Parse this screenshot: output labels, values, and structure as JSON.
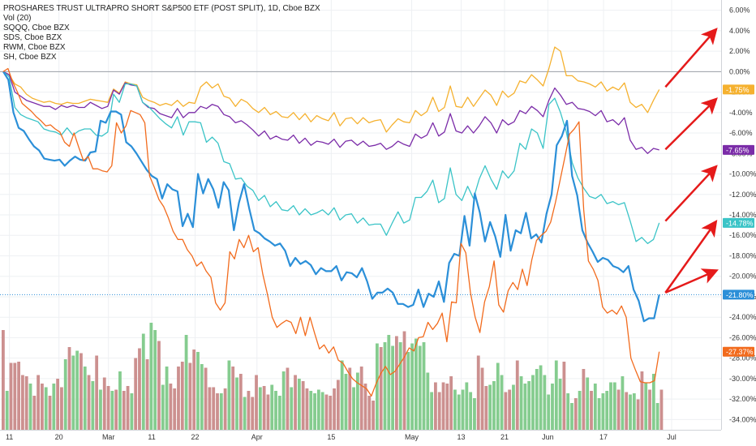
{
  "chart_data": {
    "type": "line",
    "title": "PROSHARES TRUST ULTRAPRO SHORT S&P500 ETF (POST SPLIT), 1D, Cboe BZX",
    "legend_lines": [
      "Vol (20)",
      "SQQQ, Cboe BZX",
      "SDS, Cboe BZX",
      "RWM, Cboe BZX",
      "SH, Cboe BZX"
    ],
    "y_axis": {
      "range": [
        -35,
        7
      ],
      "unit": "%",
      "ticks": [
        "6.00%",
        "4.00%",
        "2.00%",
        "0.00%",
        "-2.00%",
        "-4.00%",
        "-6.00%",
        "-8.00%",
        "-10.00%",
        "-12.00%",
        "-14.00%",
        "-16.00%",
        "-18.00%",
        "-20.00%",
        "-22.00%",
        "-24.00%",
        "-26.00%",
        "-28.00%",
        "-30.00%",
        "-32.00%",
        "-34.00%"
      ],
      "tick_values": [
        6,
        4,
        2,
        0,
        -2,
        -4,
        -6,
        -8,
        -10,
        -12,
        -14,
        -16,
        -18,
        -20,
        -22,
        -24,
        -26,
        -28,
        -30,
        -32,
        -34
      ]
    },
    "x_axis": {
      "ticks": [
        "11",
        "20",
        "Mar",
        "11",
        "22",
        "Apr",
        "15",
        "May",
        "13",
        "21",
        "Jun",
        "17",
        "Jul"
      ],
      "tick_index": [
        1,
        9,
        17,
        24,
        31,
        41,
        53,
        66,
        74,
        81,
        88,
        97,
        108
      ]
    },
    "series": [
      {
        "color": "#f5b12f",
        "last_label": "-1.75%",
        "x_end": 106,
        "y_end": -1.75,
        "values": [
          0,
          -0.3,
          -1.2,
          -1.5,
          -2.2,
          -2.6,
          -2.8,
          -3.0,
          -2.9,
          -3.1,
          -3.2,
          -3.0,
          -3.1,
          -3.1,
          -2.9,
          -2.7,
          -2.8,
          -2.9,
          -3.0,
          -1.7,
          -2.1,
          -1.0,
          -1.2,
          -1.3,
          -2.5,
          -2.8,
          -3.0,
          -3.3,
          -3.1,
          -3.3,
          -2.8,
          -3.4,
          -3.0,
          -3.1,
          -1.5,
          -1.0,
          -1.6,
          -1.2,
          -2.4,
          -2.6,
          -3.4,
          -2.7,
          -3.0,
          -3.6,
          -4.0,
          -3.5,
          -4.2,
          -3.9,
          -4.4,
          -4.5,
          -4.0,
          -4.7,
          -4.1,
          -4.9,
          -4.3,
          -4.6,
          -4.8,
          -4.0,
          -5.3,
          -4.6,
          -4.5,
          -5.1,
          -4.5,
          -5.0,
          -4.8,
          -4.7,
          -5.9,
          -5.2,
          -4.6,
          -4.9,
          -5.0,
          -3.8,
          -4.3,
          -3.9,
          -2.5,
          -3.9,
          -3.5,
          -1.4,
          -3.4,
          -3.5,
          -2.5,
          -3.4,
          -2.6,
          -1.8,
          -2.3,
          -3.3,
          -1.9,
          -2.5,
          -2.1,
          -0.9,
          -1.1,
          -0.3,
          -0.8,
          -1.4,
          0.3,
          2.4,
          2.0,
          -0.4,
          -0.4,
          -0.9,
          -1.0,
          -1.2,
          -1.5,
          -1.0,
          -1.9,
          -1.5,
          -1.8,
          -1.1,
          -3.0,
          -3.5,
          -3.2,
          -4.0,
          -2.8,
          -1.75
        ]
      },
      {
        "color": "#7b2ca8",
        "last_label": "-7.65%",
        "x_end": 106,
        "y_end": -7.65,
        "values": [
          0,
          -0.3,
          -2.0,
          -2.4,
          -2.8,
          -3.0,
          -3.2,
          -3.4,
          -3.4,
          -3.7,
          -3.3,
          -3.5,
          -3.3,
          -3.5,
          -3.5,
          -3.0,
          -3.3,
          -3.6,
          -3.4,
          -1.8,
          -2.2,
          -1.1,
          -1.3,
          -1.4,
          -3.0,
          -3.5,
          -3.6,
          -4.1,
          -4.3,
          -4.5,
          -3.6,
          -4.5,
          -4.0,
          -4.0,
          -3.4,
          -3.6,
          -3.2,
          -3.4,
          -4.2,
          -4.4,
          -5.0,
          -4.8,
          -5.2,
          -5.7,
          -6.3,
          -5.8,
          -6.6,
          -6.3,
          -6.6,
          -6.7,
          -6.2,
          -7.0,
          -6.5,
          -7.2,
          -6.8,
          -6.9,
          -7.1,
          -6.6,
          -7.4,
          -6.8,
          -6.7,
          -7.2,
          -6.8,
          -7.3,
          -7.2,
          -7.0,
          -7.6,
          -7.3,
          -6.8,
          -7.1,
          -7.3,
          -6.1,
          -6.5,
          -6.2,
          -5.0,
          -6.3,
          -5.9,
          -4.1,
          -5.8,
          -6.0,
          -5.3,
          -6.0,
          -5.3,
          -4.4,
          -5.0,
          -6.0,
          -4.7,
          -5.2,
          -4.9,
          -3.8,
          -4.1,
          -3.4,
          -3.8,
          -4.4,
          -2.8,
          -1.6,
          -2.3,
          -3.2,
          -3.0,
          -3.6,
          -3.7,
          -3.9,
          -4.3,
          -3.8,
          -4.9,
          -4.7,
          -5.2,
          -4.5,
          -6.7,
          -7.6,
          -7.4,
          -8.0,
          -7.5,
          -7.65
        ]
      },
      {
        "color": "#3bc4c7",
        "last_label": "-14.78%",
        "x_end": 106,
        "y_end": -14.78,
        "values": [
          0,
          -0.5,
          -3.5,
          -4.2,
          -4.5,
          -4.7,
          -4.9,
          -5.6,
          -5.8,
          -5.9,
          -6.2,
          -5.5,
          -6.2,
          -5.8,
          -5.6,
          -5.6,
          -6.2,
          -6.3,
          -5.9,
          -2.2,
          -3.0,
          -1.2,
          -1.2,
          -1.4,
          -3.0,
          -3.4,
          -4.0,
          -4.6,
          -5.1,
          -5.5,
          -4.4,
          -6.2,
          -4.9,
          -4.9,
          -5.0,
          -6.9,
          -6.4,
          -7.0,
          -8.8,
          -9.0,
          -10.5,
          -10.4,
          -11.2,
          -11.6,
          -12.6,
          -12.1,
          -13.2,
          -12.7,
          -13.5,
          -13.6,
          -13.1,
          -14.0,
          -13.4,
          -14.0,
          -13.8,
          -13.5,
          -14.0,
          -13.3,
          -14.5,
          -14.0,
          -13.9,
          -14.8,
          -14.3,
          -15.0,
          -14.9,
          -14.9,
          -16.0,
          -14.8,
          -13.7,
          -14.8,
          -14.5,
          -12.3,
          -12.3,
          -11.7,
          -10.6,
          -12.8,
          -12.4,
          -9.4,
          -12.0,
          -12.6,
          -11.2,
          -12.4,
          -10.5,
          -9.2,
          -10.5,
          -11.5,
          -9.7,
          -10.4,
          -9.7,
          -7.0,
          -7.6,
          -5.6,
          -6.0,
          -7.5,
          -3.2,
          -2.6,
          -4.0,
          -5.9,
          -8.9,
          -10.4,
          -11.4,
          -12.2,
          -12.4,
          -12.0,
          -12.9,
          -12.7,
          -13.0,
          -12.8,
          -14.6,
          -16.6,
          -16.2,
          -16.8,
          -16.4,
          -14.78
        ]
      },
      {
        "color": "#2b8fd8",
        "last_label": "-21.80%",
        "x_end": 106,
        "y_end": -21.8,
        "values": [
          0,
          -0.8,
          -4.0,
          -5.5,
          -5.8,
          -6.6,
          -7.3,
          -7.7,
          -8.5,
          -8.6,
          -8.7,
          -8.6,
          -9.2,
          -8.7,
          -8.3,
          -8.6,
          -8.7,
          -7.9,
          -7.8,
          -4.8,
          -5.0,
          -3.9,
          -3.9,
          -4.2,
          -6.9,
          -7.3,
          -8.0,
          -8.8,
          -9.6,
          -10.2,
          -10.5,
          -12.4,
          -11.0,
          -11.5,
          -11.7,
          -15.1,
          -13.9,
          -15.2,
          -10.0,
          -11.9,
          -10.5,
          -11.5,
          -13.3,
          -10.8,
          -11.6,
          -15.5,
          -12.8,
          -11.0,
          -13.4,
          -15.5,
          -15.8,
          -16.3,
          -16.6,
          -17.0,
          -16.8,
          -17.5,
          -19.0,
          -18.2,
          -18.8,
          -18.5,
          -18.9,
          -19.8,
          -19.2,
          -19.5,
          -19.5,
          -19.0,
          -20.4,
          -19.6,
          -19.7,
          -20.1,
          -19.2,
          -20.5,
          -22.2,
          -21.6,
          -21.6,
          -21.2,
          -21.6,
          -22.7,
          -22.7,
          -23.0,
          -22.8,
          -21.3,
          -23.0,
          -21.7,
          -22.0,
          -20.5,
          -22.5,
          -18.7,
          -17.8,
          -18.0,
          -14.1,
          -17.0,
          -11.9,
          -13.8,
          -16.6,
          -14.7,
          -16.1,
          -18.1,
          -14.0,
          -17.5,
          -15.5,
          -15.8,
          -13.8,
          -16.3,
          -15.9,
          -16.7,
          -13.9,
          -12.0,
          -7.2,
          -6.3,
          -4.8,
          -10.2,
          -12.1,
          -15.5,
          -16.7,
          -17.6,
          -18.6,
          -18.2,
          -18.4,
          -19.0,
          -19.2,
          -19.6,
          -19.0,
          -21.3,
          -22.4,
          -24.4,
          -24.1,
          -24.1,
          -21.8
        ]
      },
      {
        "color": "#f26b1d",
        "last_label": "-27.37%",
        "x_end": 106,
        "y_end": -27.37,
        "values": [
          0,
          0.3,
          -1.0,
          -2.0,
          -3.1,
          -3.5,
          -3.9,
          -4.4,
          -4.8,
          -5.3,
          -5.2,
          -5.6,
          -5.9,
          -6.9,
          -7.3,
          -6.0,
          -7.4,
          -8.7,
          -8.3,
          -9.5,
          -9.5,
          -9.7,
          -9.8,
          -9.2,
          -5.0,
          -6.0,
          -5.3,
          -3.8,
          -4.0,
          -4.2,
          -5.0,
          -10.2,
          -11.3,
          -12.5,
          -13.2,
          -14.3,
          -15.6,
          -16.4,
          -16.4,
          -17.4,
          -18.0,
          -19.0,
          -18.6,
          -19.5,
          -20.1,
          -22.6,
          -23.3,
          -22.6,
          -17.6,
          -18.3,
          -16.4,
          -17.2,
          -16.0,
          -17.6,
          -17.2,
          -19.8,
          -21.8,
          -24.0,
          -25.0,
          -24.6,
          -24.3,
          -24.5,
          -25.6,
          -24.0,
          -25.8,
          -24.0,
          -25.6,
          -27.1,
          -26.7,
          -27.5,
          -26.9,
          -28.2,
          -28.5,
          -29.3,
          -30.0,
          -30.4,
          -30.7,
          -31.0,
          -31.7,
          -30.5,
          -29.5,
          -28.8,
          -29.6,
          -29.3,
          -28.6,
          -27.9,
          -27.0,
          -27.3,
          -26.0,
          -25.9,
          -24.5,
          -25.2,
          -24.6,
          -23.6,
          -26.4,
          -22.5,
          -22.6,
          -16.8,
          -17.7,
          -21.6,
          -24.0,
          -25.5,
          -22.5,
          -21.0,
          -18.5,
          -22.8,
          -23.5,
          -21.4,
          -20.6,
          -21.3,
          -19.3,
          -20.9,
          -18.4,
          -16.5,
          -16.0,
          -15.6,
          -14.7,
          -12.8,
          -10.6,
          -8.4,
          -6.1,
          -5.6,
          -4.9,
          -13.5,
          -18.5,
          -19.3,
          -20.4,
          -23.0,
          -23.6,
          -23.3,
          -23.7,
          -22.9,
          -24.0,
          -28.0,
          -29.2,
          -30.3,
          -30.4,
          -30.4,
          -30.2,
          -27.37
        ]
      }
    ],
    "forecast_arrows": [
      {
        "color": "#e51a1a",
        "from": [
          107,
          -1.5
        ],
        "to": [
          115,
          4.0
        ]
      },
      {
        "color": "#e51a1a",
        "from": [
          107,
          -7.6
        ],
        "to": [
          115,
          -2.8
        ]
      },
      {
        "color": "#e51a1a",
        "from": [
          107,
          -14.6
        ],
        "to": [
          115,
          -9.4
        ]
      },
      {
        "color": "#e51a1a",
        "from": [
          107,
          -21.6
        ],
        "to": [
          115,
          -14.8
        ]
      },
      {
        "color": "#e51a1a",
        "from": [
          107,
          -21.6
        ],
        "to": [
          115,
          -19.5
        ]
      }
    ],
    "reference_line": {
      "y": -21.8,
      "color": "#2b8fd8"
    },
    "volume": {
      "up_color": "#7ec989",
      "down_color": "#c98a89",
      "values": [
        8.2,
        3.2,
        5.5,
        5.5,
        5.6,
        4.5,
        4.4,
        3.8,
        2.8,
        4.5,
        3.8,
        3.5,
        2.8,
        3.8,
        4.2,
        3.5,
        5.8,
        6.8,
        6.1,
        6.5,
        6.3,
        5.2,
        4.5,
        4.0,
        6.1,
        3.3,
        4.3,
        3.6,
        3.2,
        3.3,
        4.8,
        3.2,
        3.6,
        3.0,
        5.9,
        6.7,
        7.9,
        5.8,
        8.8,
        8.2,
        7.3,
        3.7,
        5.2,
        3.8,
        3.4,
        5.2,
        5.6,
        7.8,
        5.5,
        6.6,
        6.4,
        5.4,
        5.1,
        3.5,
        3.5,
        3.0,
        3.0,
        3.4,
        5.7,
        5.2,
        4.3,
        4.6,
        2.7,
        3.2,
        2.7,
        4.5,
        3.5,
        3.6,
        2.9,
        3.7,
        3.2,
        2.8,
        4.8,
        5.1,
        3.5,
        4.5,
        4.2,
        4.0,
        3.4,
        3.2,
        3.0,
        3.3,
        3.1,
        2.9,
        2.8,
        3.4,
        4.1,
        5.7,
        4.6,
        5.1,
        3.5,
        4.7,
        5.2,
        3.8,
        2.8,
        2.4,
        7.1,
        6.8,
        7.2,
        7.8,
        6.9,
        7.7,
        7.2,
        8.1,
        6.4,
        7.1,
        7.5,
        6.9,
        7.2,
        4.7,
        3.1,
        3.9,
        3.1,
        3.9,
        3.8,
        4.4,
        3.3,
        2.9,
        3.3,
        3.9,
        3.1,
        2.6,
        6.1,
        5.1,
        3.6,
        3.7,
        4.0,
        5.5,
        4.5,
        3.1,
        3.3,
        3.7,
        5.7,
        4.4,
        3.8,
        4.0,
        4.5,
        5.0,
        5.3,
        4.5,
        2.9,
        3.8,
        5.7,
        4.2,
        5.6,
        3.0,
        2.2,
        2.6,
        3.2,
        5.0,
        4.3,
        3.2,
        3.8,
        2.6,
        3.0,
        3.2,
        3.9,
        3.9,
        3.3,
        4.4,
        3.1,
        2.9,
        3.0,
        2.5,
        4.8,
        3.9,
        3.3,
        4.6,
        2.2,
        3.3
      ],
      "up_flags": [
        0,
        1,
        0,
        0,
        0,
        0,
        0,
        1,
        0,
        0,
        0,
        1,
        0,
        1,
        0,
        0,
        1,
        0,
        1,
        1,
        0,
        1,
        0,
        1,
        0,
        1,
        0,
        0,
        1,
        0,
        1,
        0,
        0,
        1,
        0,
        0,
        1,
        0,
        1,
        1,
        0,
        1,
        1,
        0,
        0,
        0,
        0,
        1,
        0,
        0,
        1,
        1,
        0,
        0,
        0,
        0,
        1,
        0,
        1,
        0,
        1,
        0,
        1,
        0,
        0,
        0,
        1,
        0,
        0,
        1,
        1,
        1,
        1,
        0,
        1,
        0,
        1,
        0,
        0,
        1,
        1,
        1,
        1,
        0,
        0,
        0,
        0,
        1,
        1,
        0,
        1,
        1,
        0,
        0,
        0,
        0,
        1,
        0,
        1,
        1,
        1,
        0,
        1,
        0,
        1,
        1,
        1,
        1,
        1,
        1,
        1,
        0,
        0,
        0,
        0,
        0,
        1,
        1,
        1,
        1,
        1,
        1,
        0,
        0,
        0,
        1,
        1,
        1,
        1,
        0,
        0,
        1,
        0,
        1,
        1,
        1,
        1,
        1,
        1,
        1,
        1,
        1,
        1,
        1,
        0,
        1,
        1,
        0,
        1,
        0,
        1,
        0,
        1,
        1,
        1,
        1,
        1,
        1,
        0,
        1,
        0,
        1,
        1,
        0,
        0,
        1,
        0,
        1,
        1,
        0,
        0,
        1
      ]
    }
  },
  "legend": {
    "title": "PROSHARES TRUST ULTRAPRO SHORT S&P500 ETF (POST SPLIT), 1D, Cboe BZX",
    "l1": "Vol (20)",
    "l2": "SQQQ, Cboe BZX",
    "l3": "SDS, Cboe BZX",
    "l4": "RWM, Cboe BZX",
    "l5": "SH, Cboe BZX"
  }
}
